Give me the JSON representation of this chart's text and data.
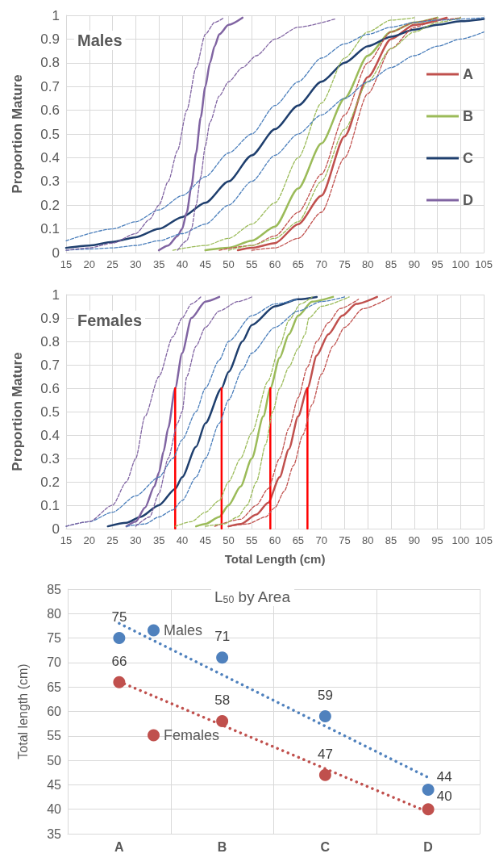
{
  "chart_data": [
    {
      "type": "line",
      "title": "Males",
      "ylabel": "Proportion Mature",
      "xlim": [
        15,
        105
      ],
      "xticks": [
        15,
        20,
        25,
        30,
        35,
        40,
        45,
        50,
        55,
        60,
        65,
        70,
        75,
        80,
        85,
        90,
        95,
        100,
        105
      ],
      "ylim": [
        0,
        1
      ],
      "yticks": [
        0,
        0.1,
        0.2,
        0.3,
        0.4,
        0.5,
        0.6,
        0.7,
        0.8,
        0.9,
        1
      ],
      "grid": true,
      "legend": "right",
      "marker": "none",
      "series": [
        {
          "name": "A",
          "color": "#c0504d",
          "line_style": "solid",
          "x": [
            52,
            55,
            60,
            65,
            70,
            75,
            80,
            85,
            90,
            97
          ],
          "values": [
            0.01,
            0.02,
            0.04,
            0.12,
            0.24,
            0.49,
            0.74,
            0.9,
            0.96,
            0.99
          ]
        },
        {
          "color": "#c0504d",
          "line_style": "dashed",
          "x": [
            55,
            60,
            65,
            70,
            75,
            80,
            85,
            90,
            95,
            100
          ],
          "values": [
            0.01,
            0.02,
            0.06,
            0.17,
            0.4,
            0.67,
            0.86,
            0.95,
            0.98,
            0.99
          ]
        },
        {
          "color": "#c0504d",
          "line_style": "dashed",
          "x": [
            48,
            55,
            60,
            65,
            70,
            75,
            80,
            85,
            90,
            95
          ],
          "values": [
            0.01,
            0.03,
            0.07,
            0.17,
            0.33,
            0.58,
            0.8,
            0.93,
            0.97,
            0.99
          ]
        },
        {
          "name": "B",
          "color": "#9bbb59",
          "line_style": "solid",
          "x": [
            45,
            50,
            55,
            60,
            65,
            70,
            75,
            80,
            85,
            90,
            95
          ],
          "values": [
            0.01,
            0.02,
            0.05,
            0.11,
            0.27,
            0.46,
            0.65,
            0.83,
            0.93,
            0.97,
            0.99
          ]
        },
        {
          "color": "#9bbb59",
          "line_style": "dashed",
          "x": [
            38,
            45,
            50,
            55,
            60,
            65,
            70,
            75,
            80,
            85,
            90
          ],
          "values": [
            0.01,
            0.03,
            0.06,
            0.12,
            0.21,
            0.4,
            0.63,
            0.82,
            0.93,
            0.98,
            0.99
          ]
        },
        {
          "color": "#9bbb59",
          "line_style": "dashed",
          "x": [
            50,
            55,
            60,
            65,
            70,
            75,
            80,
            85,
            90,
            95,
            100
          ],
          "values": [
            0.01,
            0.03,
            0.06,
            0.13,
            0.3,
            0.52,
            0.72,
            0.86,
            0.93,
            0.97,
            0.99
          ]
        },
        {
          "name": "C",
          "color": "#1f3f6e",
          "line_style": "solid",
          "x": [
            15,
            20,
            25,
            30,
            35,
            40,
            45,
            50,
            55,
            60,
            65,
            70,
            75,
            80,
            85,
            90,
            95,
            100,
            105
          ],
          "values": [
            0.02,
            0.03,
            0.045,
            0.065,
            0.1,
            0.15,
            0.21,
            0.3,
            0.41,
            0.52,
            0.62,
            0.72,
            0.8,
            0.87,
            0.91,
            0.94,
            0.96,
            0.975,
            0.985
          ]
        },
        {
          "color": "#4a7ebb",
          "line_style": "dashed",
          "x": [
            15,
            25,
            30,
            35,
            40,
            45,
            50,
            55,
            60,
            65,
            70,
            75,
            80,
            85,
            90,
            95,
            105
          ],
          "values": [
            0.05,
            0.1,
            0.13,
            0.18,
            0.24,
            0.32,
            0.42,
            0.5,
            0.62,
            0.72,
            0.82,
            0.88,
            0.92,
            0.95,
            0.97,
            0.98,
            0.99
          ]
        },
        {
          "color": "#4a7ebb",
          "line_style": "dashed",
          "x": [
            15,
            20,
            25,
            30,
            35,
            40,
            45,
            50,
            55,
            60,
            65,
            70,
            75,
            80,
            85,
            90,
            95,
            100,
            105
          ],
          "values": [
            0.01,
            0.015,
            0.02,
            0.03,
            0.05,
            0.08,
            0.12,
            0.2,
            0.3,
            0.41,
            0.5,
            0.58,
            0.65,
            0.72,
            0.78,
            0.83,
            0.87,
            0.9,
            0.93
          ]
        },
        {
          "name": "D",
          "color": "#8064a2",
          "line_style": "solid",
          "x": [
            35,
            37,
            39,
            40,
            41,
            42,
            43,
            44,
            45,
            46,
            47,
            48,
            50,
            53
          ],
          "values": [
            0.01,
            0.03,
            0.07,
            0.1,
            0.17,
            0.28,
            0.42,
            0.57,
            0.7,
            0.8,
            0.87,
            0.92,
            0.96,
            0.99
          ]
        },
        {
          "color": "#8064a2",
          "line_style": "dashed",
          "x": [
            15,
            20,
            25,
            30,
            33,
            35,
            37,
            39,
            41,
            43,
            45,
            47,
            49
          ],
          "values": [
            0.01,
            0.02,
            0.04,
            0.08,
            0.14,
            0.2,
            0.3,
            0.43,
            0.6,
            0.78,
            0.92,
            0.97,
            0.99
          ]
        },
        {
          "color": "#8064a2",
          "line_style": "dashed",
          "x": [
            39,
            41,
            42,
            43,
            44,
            45,
            46,
            48,
            50,
            53,
            56,
            60,
            65,
            73
          ],
          "values": [
            0.01,
            0.05,
            0.1,
            0.2,
            0.32,
            0.45,
            0.55,
            0.66,
            0.72,
            0.78,
            0.83,
            0.9,
            0.95,
            0.985
          ]
        }
      ]
    },
    {
      "type": "line",
      "title": "Females",
      "xlabel": "Total Length (cm)",
      "ylabel": "Proportion Mature",
      "xlim": [
        15,
        105
      ],
      "xticks": [
        15,
        20,
        25,
        30,
        35,
        40,
        45,
        50,
        55,
        60,
        65,
        70,
        75,
        80,
        85,
        90,
        95,
        100,
        105
      ],
      "ylim": [
        0,
        1
      ],
      "yticks": [
        0,
        0.1,
        0.2,
        0.3,
        0.4,
        0.5,
        0.6,
        0.7,
        0.8,
        0.9,
        1
      ],
      "grid": true,
      "marker": "none",
      "series": [
        {
          "color": "#c0504d",
          "line_style": "solid",
          "x": [
            50,
            52.6,
            56,
            58.5,
            61,
            63,
            65,
            67,
            69,
            71.5,
            74.5,
            77.5,
            82
          ],
          "values": [
            0.01,
            0.02,
            0.06,
            0.11,
            0.22,
            0.34,
            0.48,
            0.6,
            0.74,
            0.83,
            0.91,
            0.96,
            0.99
          ]
        },
        {
          "color": "#c0504d",
          "line_style": "dashed",
          "x": [
            47,
            52.6,
            56,
            58.5,
            61,
            63,
            65,
            67,
            69,
            71.5,
            74,
            78
          ],
          "values": [
            0.01,
            0.04,
            0.1,
            0.17,
            0.3,
            0.43,
            0.56,
            0.69,
            0.8,
            0.88,
            0.94,
            0.98
          ]
        },
        {
          "color": "#c0504d",
          "line_style": "dashed",
          "x": [
            50,
            54,
            58,
            60,
            62,
            64,
            66,
            68,
            70,
            72.5,
            75,
            79,
            85
          ],
          "values": [
            0.01,
            0.02,
            0.05,
            0.09,
            0.16,
            0.27,
            0.4,
            0.53,
            0.66,
            0.78,
            0.86,
            0.94,
            0.99
          ]
        },
        {
          "color": "#9bbb59",
          "line_style": "solid",
          "x": [
            43,
            45,
            48,
            50,
            52.6,
            55,
            57.5,
            59,
            61,
            63,
            65,
            68,
            72.5
          ],
          "values": [
            0.01,
            0.02,
            0.05,
            0.1,
            0.18,
            0.3,
            0.48,
            0.6,
            0.73,
            0.83,
            0.91,
            0.97,
            0.99
          ]
        },
        {
          "color": "#9bbb59",
          "line_style": "dashed",
          "x": [
            38.5,
            42,
            45,
            48,
            50,
            52.6,
            55,
            58.5,
            61,
            63,
            65.5,
            68
          ],
          "values": [
            0.01,
            0.03,
            0.07,
            0.12,
            0.2,
            0.3,
            0.41,
            0.63,
            0.78,
            0.89,
            0.96,
            0.99
          ]
        },
        {
          "color": "#9bbb59",
          "line_style": "dashed",
          "x": [
            45,
            49,
            52,
            54,
            56,
            58,
            59.5,
            61,
            63,
            65,
            66.5,
            67.3,
            70,
            76
          ],
          "values": [
            0.01,
            0.02,
            0.05,
            0.1,
            0.2,
            0.36,
            0.5,
            0.6,
            0.69,
            0.77,
            0.83,
            0.9,
            0.95,
            0.99
          ]
        },
        {
          "color": "#1f3f6e",
          "line_style": "solid",
          "x": [
            24,
            28,
            31,
            35,
            38.5,
            40,
            43,
            45,
            48.5,
            50,
            53,
            55,
            60,
            65,
            69
          ],
          "values": [
            0.01,
            0.025,
            0.05,
            0.1,
            0.17,
            0.22,
            0.35,
            0.45,
            0.6,
            0.67,
            0.8,
            0.87,
            0.95,
            0.98,
            0.99
          ]
        },
        {
          "color": "#4a7ebb",
          "line_style": "dashed",
          "x": [
            15,
            20,
            25,
            30,
            35,
            38,
            40,
            43,
            45,
            48,
            50,
            55,
            60,
            65
          ],
          "values": [
            0.01,
            0.03,
            0.07,
            0.14,
            0.22,
            0.3,
            0.38,
            0.5,
            0.6,
            0.72,
            0.8,
            0.91,
            0.96,
            0.98
          ]
        },
        {
          "color": "#4a7ebb",
          "line_style": "dashed",
          "x": [
            28,
            32,
            35,
            38,
            40,
            43,
            45,
            48,
            50,
            53,
            55,
            60,
            65,
            70,
            75
          ],
          "values": [
            0.01,
            0.02,
            0.05,
            0.08,
            0.12,
            0.22,
            0.3,
            0.45,
            0.55,
            0.68,
            0.75,
            0.86,
            0.93,
            0.97,
            0.99
          ]
        },
        {
          "color": "#8064a2",
          "line_style": "solid",
          "x": [
            28,
            30,
            32,
            34,
            35,
            36,
            37,
            38.5,
            40,
            42,
            45,
            48
          ],
          "values": [
            0.01,
            0.03,
            0.09,
            0.18,
            0.24,
            0.33,
            0.43,
            0.6,
            0.75,
            0.9,
            0.97,
            0.99
          ]
        },
        {
          "color": "#8064a2",
          "line_style": "dashed",
          "x": [
            15,
            20,
            25,
            28,
            30,
            32,
            35,
            38,
            40,
            42,
            44
          ],
          "values": [
            0.01,
            0.03,
            0.1,
            0.2,
            0.3,
            0.48,
            0.65,
            0.82,
            0.9,
            0.96,
            0.99
          ]
        },
        {
          "color": "#8064a2",
          "line_style": "dashed",
          "x": [
            30,
            33,
            35,
            37,
            39,
            40,
            41,
            43,
            45,
            48,
            52,
            55
          ],
          "values": [
            0.01,
            0.05,
            0.15,
            0.3,
            0.45,
            0.5,
            0.65,
            0.78,
            0.86,
            0.93,
            0.97,
            0.99
          ]
        },
        {
          "color": "#ff0000",
          "line_style": "solid",
          "x": [
            38.5,
            38.5
          ],
          "values": [
            0,
            0.6
          ]
        },
        {
          "color": "#ff0000",
          "line_style": "solid",
          "x": [
            48.5,
            48.5
          ],
          "values": [
            0,
            0.6
          ]
        },
        {
          "color": "#ff0000",
          "line_style": "solid",
          "x": [
            59,
            59
          ],
          "values": [
            0,
            0.6
          ]
        },
        {
          "color": "#ff0000",
          "line_style": "solid",
          "x": [
            67,
            67
          ],
          "values": [
            0,
            0.6
          ]
        }
      ]
    },
    {
      "type": "scatter",
      "title": "L$_{50}$ by Area",
      "ylabel": "Total length (cm)",
      "categories": [
        "A",
        "B",
        "C",
        "D"
      ],
      "ylim": [
        35,
        85
      ],
      "yticks": [
        35,
        40,
        45,
        50,
        55,
        60,
        65,
        70,
        75,
        80,
        85
      ],
      "grid": true,
      "legend": "left",
      "marker": "circle",
      "series": [
        {
          "name": "Males",
          "color": "#4f81bd",
          "values": [
            75,
            71,
            59,
            44
          ],
          "value_labels": [
            "75",
            "71",
            "59",
            "44"
          ]
        },
        {
          "name": "Females",
          "color": "#c0504d",
          "values": [
            66,
            58,
            47,
            40
          ],
          "value_labels": [
            "66",
            "58",
            "47",
            "40"
          ]
        },
        {
          "type": "line",
          "color": "#4f81bd",
          "line_style": "dotted",
          "marker": "none",
          "values": [
            78,
            67.5,
            57,
            46.5
          ]
        },
        {
          "type": "line",
          "color": "#c0504d",
          "line_style": "dotted",
          "marker": "none",
          "values": [
            66.1,
            57.2,
            48.3,
            39.4
          ]
        }
      ]
    }
  ]
}
